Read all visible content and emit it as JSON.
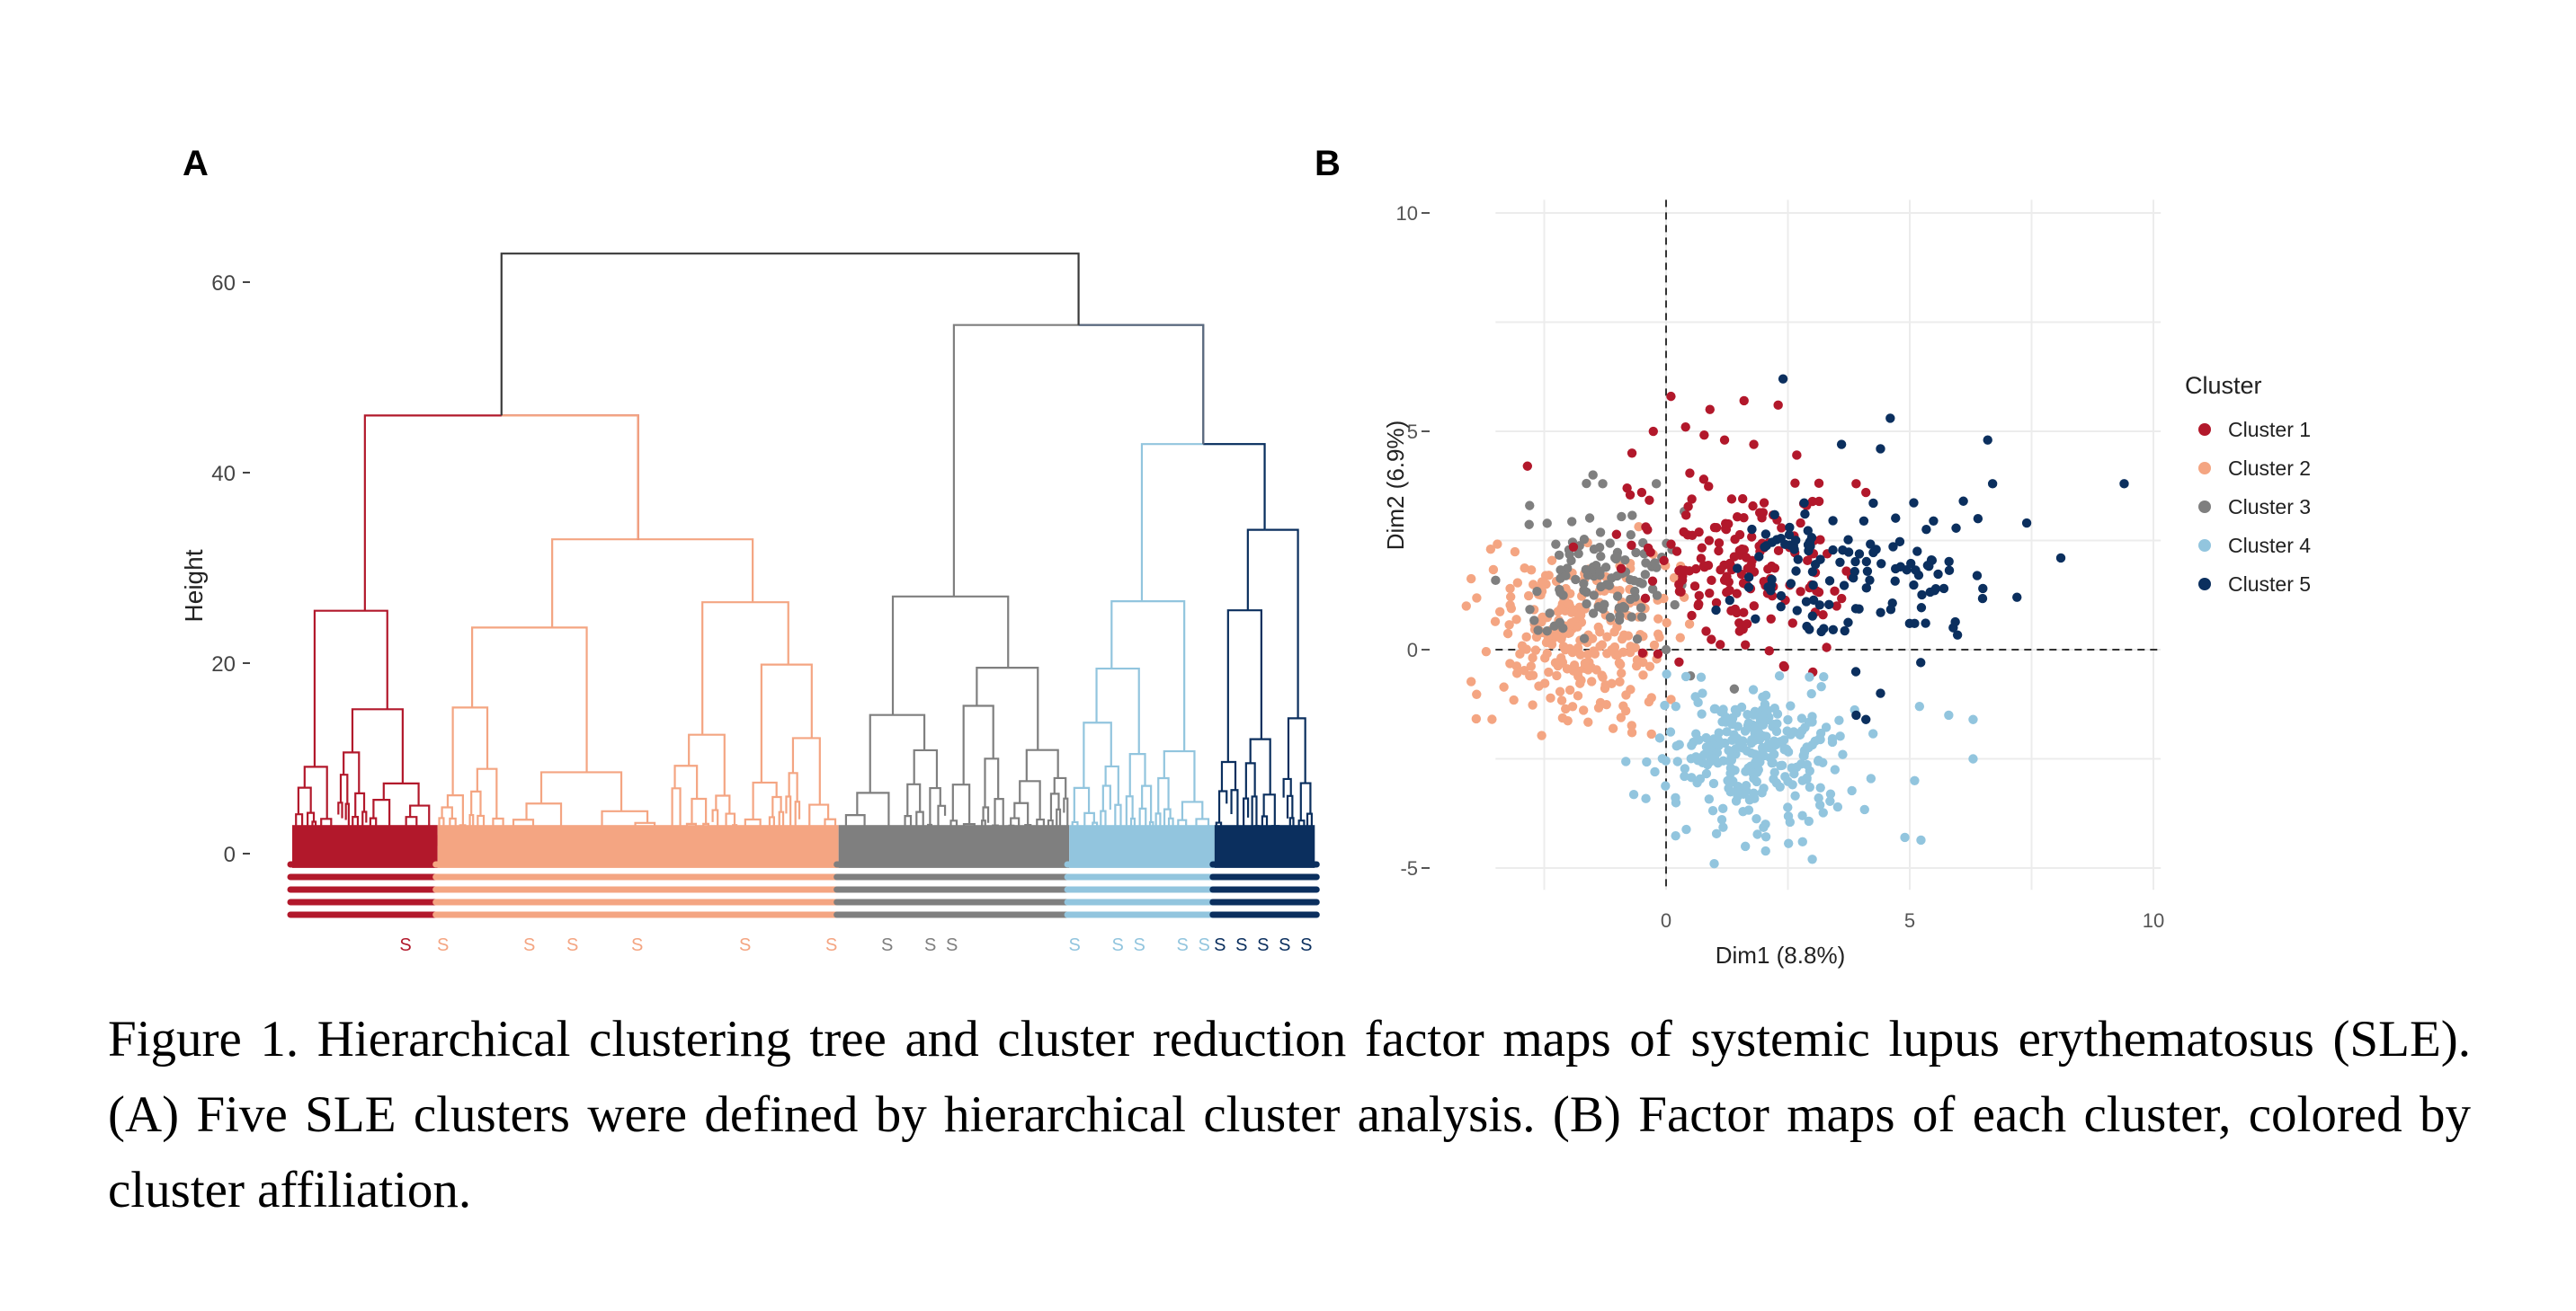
{
  "panels": {
    "a": "A",
    "b": "B"
  },
  "caption": "Figure 1. Hierarchical clustering tree and cluster reduction factor maps of systemic lupus erythematosus (SLE). (A) Five SLE clusters were defined by hierarchical cluster analysis. (B) Factor maps of each cluster, colored by cluster affiliation.",
  "colors": {
    "cluster1": "#b2182b",
    "cluster2": "#f4a582",
    "cluster3": "#7f7f7f",
    "cluster4": "#92c5de",
    "cluster5": "#0b2f5e",
    "root": "#3a3a3a"
  },
  "chart_data": [
    {
      "type": "dendrogram",
      "ylabel": "Height",
      "yticks": [
        0,
        20,
        40,
        60
      ],
      "ylim": [
        -8,
        64
      ],
      "leaf_label_char": "S",
      "clusters": [
        {
          "id": 1,
          "leaves_fraction": 0.145,
          "merge_height": 46
        },
        {
          "id": 2,
          "leaves_fraction": 0.4,
          "merge_height": 46
        },
        {
          "id": 3,
          "leaves_fraction": 0.23,
          "merge_height": 55
        },
        {
          "id": 4,
          "leaves_fraction": 0.145,
          "merge_height": 43
        },
        {
          "id": 5,
          "leaves_fraction": 0.1,
          "merge_height": 43
        }
      ],
      "merges": [
        {
          "left": "cluster 1",
          "right": "cluster 2",
          "height": 46
        },
        {
          "left": "cluster 4",
          "right": "cluster 5",
          "height": 43
        },
        {
          "left": "cluster 3",
          "right": "clusters 4+5",
          "height": 55
        },
        {
          "left": "clusters 1+2",
          "right": "clusters 3+4+5",
          "height": 63
        }
      ]
    },
    {
      "type": "scatter",
      "xlabel": "Dim1 (8.8%)",
      "ylabel": "Dim2 (6.9%)",
      "xticks": [
        0,
        5,
        10
      ],
      "yticks": [
        -5,
        0,
        5,
        10
      ],
      "xlim": [
        -3.5,
        10
      ],
      "ylim": [
        -5.5,
        10.3
      ],
      "grid": true,
      "reference_lines": {
        "x": 0,
        "y": 0,
        "style": "dashed"
      },
      "legend": {
        "title": "Cluster",
        "placement": "right",
        "entries": [
          "Cluster 1",
          "Cluster 2",
          "Cluster 3",
          "Cluster 4",
          "Cluster 5"
        ]
      },
      "series": [
        {
          "name": "Cluster 1",
          "color": "#b2182b",
          "n": 170,
          "center": [
            1.4,
            2.0
          ],
          "spread": [
            1.1,
            1.0
          ],
          "points": [
            [
              0.1,
              5.8
            ],
            [
              1.6,
              5.7
            ],
            [
              2.3,
              5.6
            ],
            [
              0.9,
              5.5
            ],
            [
              0.4,
              5.1
            ],
            [
              1.2,
              4.8
            ],
            [
              1.8,
              4.7
            ],
            [
              -0.7,
              4.5
            ],
            [
              -0.5,
              3.6
            ],
            [
              -0.8,
              3.7
            ],
            [
              3.9,
              3.8
            ],
            [
              4.1,
              3.6
            ],
            [
              3.7,
              1.8
            ],
            [
              3.5,
              1.0
            ]
          ]
        },
        {
          "name": "Cluster 2",
          "color": "#f4a582",
          "n": 260,
          "center": [
            -1.8,
            0.3
          ],
          "spread": [
            0.9,
            0.9
          ],
          "points": [
            [
              -4.1,
              1.0
            ],
            [
              -3.6,
              2.3
            ],
            [
              -3.2,
              1.4
            ],
            [
              -3.0,
              -0.1
            ],
            [
              -0.7,
              -1.9
            ],
            [
              -0.3,
              -1.1
            ]
          ]
        },
        {
          "name": "Cluster 3",
          "color": "#7f7f7f",
          "n": 110,
          "center": [
            -1.3,
            1.7
          ],
          "spread": [
            0.8,
            0.7
          ],
          "points": [
            [
              -2.8,
              3.3
            ],
            [
              -1.5,
              4.0
            ],
            [
              -1.3,
              3.8
            ],
            [
              -0.2,
              3.8
            ],
            [
              0.0,
              0.0
            ],
            [
              0.5,
              -0.6
            ],
            [
              1.4,
              -0.9
            ]
          ]
        },
        {
          "name": "Cluster 4",
          "color": "#92c5de",
          "n": 290,
          "center": [
            1.8,
            -2.4
          ],
          "spread": [
            1.0,
            0.8
          ],
          "points": [
            [
              5.2,
              -1.3
            ],
            [
              5.8,
              -1.5
            ],
            [
              6.3,
              -1.6
            ],
            [
              6.3,
              -2.5
            ],
            [
              5.1,
              -3.0
            ],
            [
              4.9,
              -4.3
            ],
            [
              3.0,
              -4.8
            ],
            [
              2.8,
              -4.4
            ],
            [
              0.2,
              -1.3
            ]
          ]
        },
        {
          "name": "Cluster 5",
          "color": "#0b2f5e",
          "n": 120,
          "center": [
            3.8,
            1.9
          ],
          "spread": [
            1.3,
            0.9
          ],
          "points": [
            [
              2.4,
              6.2
            ],
            [
              4.6,
              5.3
            ],
            [
              3.6,
              4.7
            ],
            [
              4.4,
              4.6
            ],
            [
              6.6,
              4.8
            ],
            [
              6.1,
              3.4
            ],
            [
              6.4,
              3.0
            ],
            [
              6.7,
              3.8
            ],
            [
              7.4,
              2.9
            ],
            [
              8.1,
              2.1
            ],
            [
              9.4,
              3.8
            ],
            [
              7.2,
              1.2
            ],
            [
              6.5,
              1.4
            ],
            [
              5.7,
              1.4
            ],
            [
              5.1,
              0.6
            ],
            [
              4.4,
              -1.0
            ],
            [
              3.9,
              -1.5
            ],
            [
              4.1,
              -1.6
            ]
          ]
        }
      ]
    }
  ]
}
